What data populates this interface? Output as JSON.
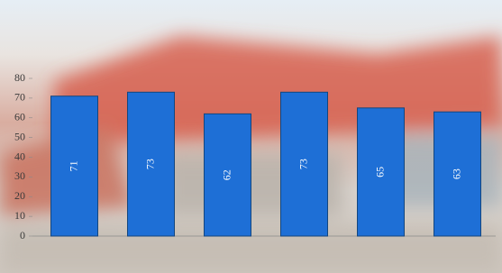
{
  "chart_data": {
    "type": "bar",
    "categories": [
      null,
      null,
      null,
      null,
      null,
      null
    ],
    "values": [
      71,
      73,
      62,
      73,
      65,
      63
    ],
    "color": "#1e6fd6",
    "ylim": [
      0,
      80
    ],
    "yticks": [
      0,
      10,
      20,
      30,
      40,
      50,
      60,
      70,
      80
    ]
  }
}
